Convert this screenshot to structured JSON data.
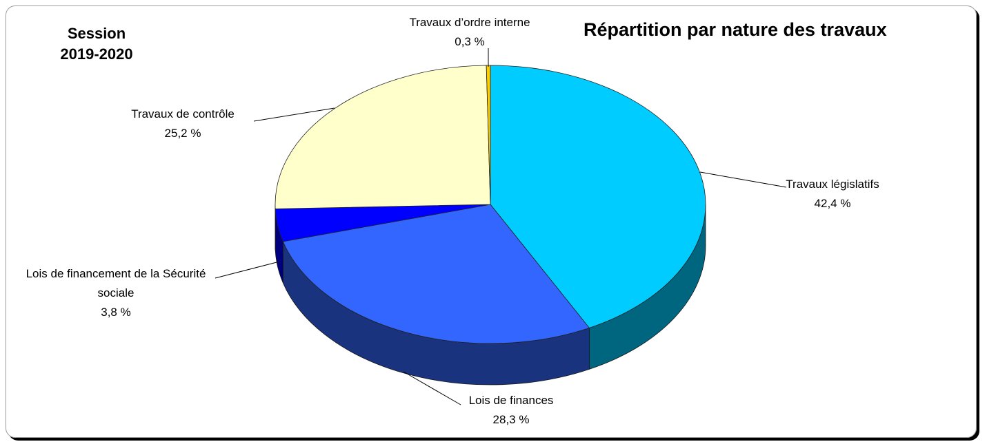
{
  "chart_data": {
    "type": "pie3d",
    "title": "Répartition par nature des travaux",
    "subtitle": "Session 2019-2020",
    "categories": [
      "Travaux législatifs",
      "Lois de finances",
      "Lois de financement de la Sécurité sociale",
      "Travaux de contrôle",
      "Travaux d’ordre interne"
    ],
    "values": [
      42.4,
      28.3,
      3.8,
      25.2,
      0.3
    ],
    "value_labels": [
      "42,4 %",
      "28,3 %",
      "3,8 %",
      "25,2 %",
      "0,3 %"
    ],
    "colors": [
      "#00ccff",
      "#3366ff",
      "#0000ff",
      "#ffffcc",
      "#ffcc00"
    ]
  }
}
